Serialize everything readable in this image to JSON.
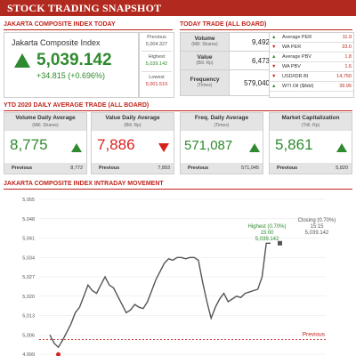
{
  "header": {
    "title": "STOCK TRADING SNAPSHOT"
  },
  "index_today": {
    "section_title": "JAKARTA COMPOSITE INDEX TODAY",
    "name": "Jakarta Composite Index",
    "value": "5,039.142",
    "change": "+34.815 (+0.696%)",
    "direction": "up",
    "previous_label": "Previous",
    "previous_value": "5,004.327",
    "highest_label": "Highest",
    "highest_value": "5,039.142",
    "lowest_label": "Lowest",
    "lowest_value": "5,001.519"
  },
  "today_trade": {
    "section_title": "TODAY TRADE (ALL BOARD)",
    "rows": [
      {
        "label": "Volume",
        "sub": "(Mill. Shares)",
        "value": "9,492"
      },
      {
        "label": "Value",
        "sub": "(Bill. Rp)",
        "value": "6,473"
      },
      {
        "label": "Frequency",
        "sub": "(Times)",
        "value": "579,040"
      }
    ],
    "ratios": [
      {
        "label": "Average PER",
        "value": "11.9",
        "dir": "up"
      },
      {
        "label": "WA PER",
        "value": "33.0",
        "dir": "down"
      },
      {
        "label": "Average PBV",
        "value": "1.8",
        "dir": "up"
      },
      {
        "label": "WA PBV",
        "value": "1.6",
        "dir": "down"
      },
      {
        "label": "USD/IDR BI",
        "value": "14,750",
        "dir": "down"
      },
      {
        "label": "WTI Oil ($/bbl)",
        "value": "39.95",
        "dir": "up"
      }
    ]
  },
  "ytd": {
    "section_title": "YTD 2020 DAILY AVERAGE TRADE (ALL BOARD)",
    "cards": [
      {
        "title": "Volume Daily Average",
        "sub": "(Mill. Shares)",
        "value": "8,775",
        "dir": "up",
        "prev_label": "Previous",
        "prev_value": "8,772"
      },
      {
        "title": "Value Daily Average",
        "sub": "(Bill. Rp)",
        "value": "7,886",
        "dir": "down",
        "prev_label": "Previous",
        "prev_value": "7,893"
      },
      {
        "title": "Freq. Daily Average",
        "sub": "(Times)",
        "value": "571,087",
        "dir": "up",
        "prev_label": "Previous",
        "prev_value": "571,045"
      },
      {
        "title": "Market Capitalization",
        "sub": "(Trill. Rp)",
        "value": "5,861",
        "dir": "up",
        "prev_label": "Previous",
        "prev_value": "5,820"
      }
    ]
  },
  "intraday": {
    "section_title": "JAKARTA COMPOSITE INDEX INTRADAY MOVEMENT",
    "highest_annotation": [
      "Highest (0.70%)",
      "15:00",
      "5,039.142"
    ],
    "closing_annotation": [
      "Closing (0.70%)",
      "15:15",
      "5,039.142"
    ],
    "previous_label": "Previous"
  },
  "colors": {
    "brand": "#b22a1f",
    "up": "#2f8a2f",
    "down": "#d8201c",
    "line": "#555555"
  },
  "chart_data": {
    "type": "line",
    "title": "JAKARTA COMPOSITE INDEX INTRADAY MOVEMENT",
    "ylim": [
      4999,
      5055
    ],
    "yticks": [
      "4,999",
      "5,006",
      "5,013",
      "5,020",
      "5,027",
      "5,034",
      "5,041",
      "5,048",
      "5,055"
    ],
    "previous_close": 5004.327,
    "series": [
      {
        "values": [
          5006.0,
          5003.0,
          5001.5,
          5004.0,
          5007.0,
          5010.0,
          5014.0,
          5016.0,
          5020.0,
          5024.0,
          5022.0,
          5021.0,
          5024.0,
          5027.0,
          5024.0,
          5023.0,
          5020.0,
          5017.0,
          5014.0,
          5015.0,
          5017.0,
          5016.0,
          5015.5,
          5018.0,
          5022.0,
          5026.0,
          5029.0,
          5032.0,
          5033.5,
          5033.0,
          5034.0,
          5034.0,
          5033.5,
          5034.0,
          5034.0,
          5033.0,
          5025.0,
          5018.0,
          5012.0,
          5016.0,
          5019.0,
          5021.0,
          5018.0,
          5019.0,
          5020.0,
          5019.5,
          5021.0,
          5021.5,
          5022.0,
          5022.5,
          5027.0,
          5039.142,
          5039.142
        ]
      }
    ]
  }
}
